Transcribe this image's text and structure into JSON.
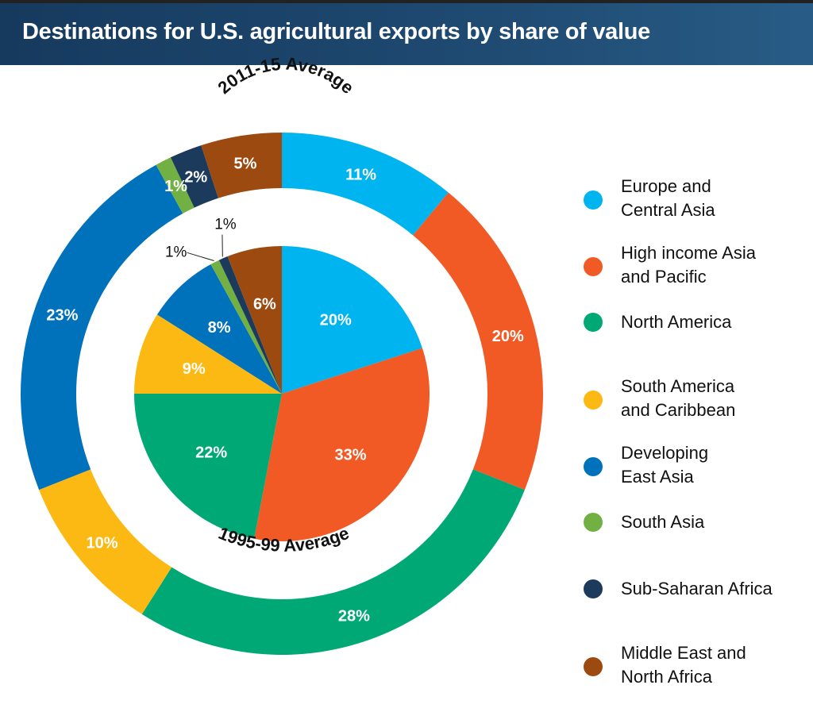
{
  "header": {
    "title": "Destinations for U.S. agricultural exports by share of value"
  },
  "chart_data": {
    "type": "pie",
    "title": "Destinations for U.S. agricultural exports by share of value",
    "categories": [
      "Europe and Central Asia",
      "High income Asia and Pacific",
      "North America",
      "South America and Caribbean",
      "Developing East Asia",
      "South Asia",
      "Sub-Saharan Africa",
      "Middle East and North Africa"
    ],
    "colors": [
      "#00b5ef",
      "#f15a24",
      "#00a875",
      "#fdb913",
      "#0072bc",
      "#72b043",
      "#1b3a5c",
      "#9c4a0f"
    ],
    "series": [
      {
        "name": "2011-15 Average",
        "ring": "outer",
        "values": [
          11,
          20,
          28,
          10,
          23,
          1,
          2,
          5
        ],
        "labels": [
          "11%",
          "20%",
          "28%",
          "10%",
          "23%",
          "1%",
          "2%",
          "5%"
        ]
      },
      {
        "name": "1995-99 Average",
        "ring": "inner",
        "values": [
          20,
          33,
          22,
          9,
          8,
          1,
          1,
          6
        ],
        "labels": [
          "20%",
          "33%",
          "22%",
          "9%",
          "8%",
          "1%",
          "1%",
          "6%"
        ]
      }
    ],
    "legend": {
      "placement": "right",
      "items": [
        [
          "Europe and",
          "Central Asia"
        ],
        [
          "High income Asia",
          "and Pacific"
        ],
        [
          "North America"
        ],
        [
          "South America",
          "and Caribbean"
        ],
        [
          "Developing",
          "East Asia"
        ],
        [
          "South Asia"
        ],
        [
          "Sub-Saharan Africa"
        ],
        [
          "Middle East and",
          "North Africa"
        ]
      ]
    }
  }
}
